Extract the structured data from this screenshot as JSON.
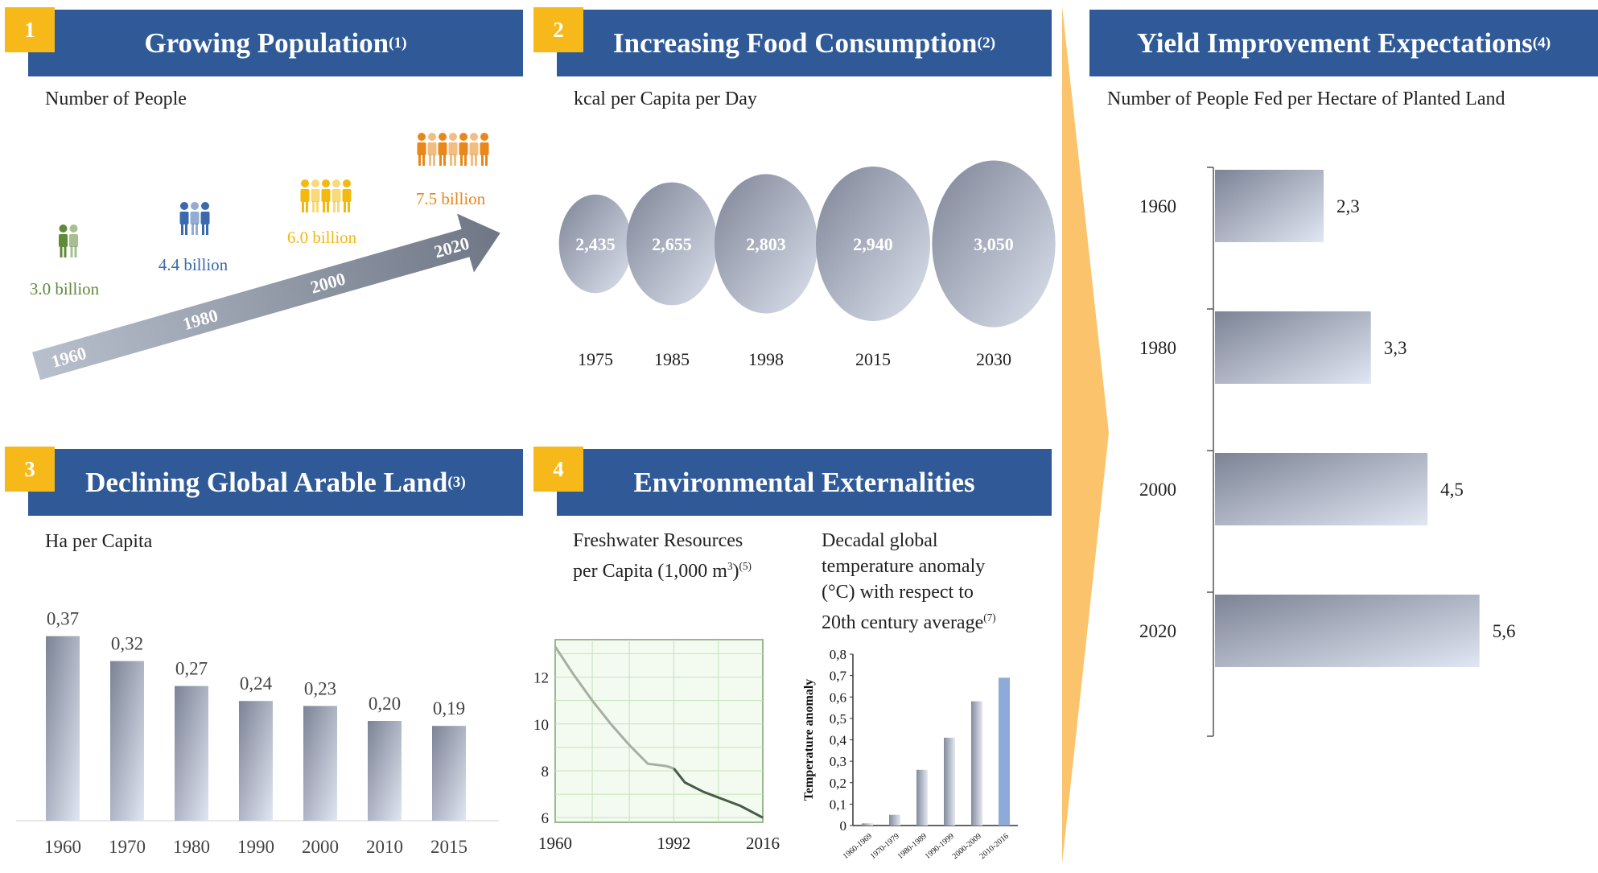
{
  "panel1": {
    "badge": "1",
    "title": "Growing Population",
    "title_sup": "(1)",
    "subtitle": "Number of People",
    "groups": [
      {
        "label": "3.0 billion",
        "color": "#5e8a3a",
        "icon": "people-group-icon"
      },
      {
        "label": "4.4 billion",
        "color": "#3a69ad",
        "icon": "people-group-icon"
      },
      {
        "label": "6.0 billion",
        "color": "#f2b90f",
        "icon": "people-group-icon"
      },
      {
        "label": "7.5 billion",
        "color": "#e8871a",
        "icon": "people-group-icon"
      }
    ],
    "arrow_years": [
      "1960",
      "1980",
      "2000",
      "2020"
    ]
  },
  "panel2": {
    "badge": "2",
    "title": "Increasing Food Consumption",
    "title_sup": "(2)",
    "subtitle": "kcal per Capita per Day",
    "chart_data": {
      "type": "bubble",
      "categories": [
        "1975",
        "1985",
        "1998",
        "2015",
        "2030"
      ],
      "values": [
        2435,
        2655,
        2803,
        2940,
        3050
      ],
      "value_labels": [
        "2,435",
        "2,655",
        "2,803",
        "2,940",
        "3,050"
      ]
    }
  },
  "panel3": {
    "badge": "3",
    "title": "Declining Global Arable Land",
    "title_sup": "(3)",
    "subtitle": "Ha per Capita",
    "chart_data": {
      "type": "bar",
      "categories": [
        "1960",
        "1970",
        "1980",
        "1990",
        "2000",
        "2010",
        "2015"
      ],
      "values": [
        0.37,
        0.32,
        0.27,
        0.24,
        0.23,
        0.2,
        0.19
      ],
      "value_labels": [
        "0,37",
        "0,32",
        "0,27",
        "0,24",
        "0,23",
        "0,20",
        "0,19"
      ]
    }
  },
  "panel4": {
    "badge": "4",
    "title": "Environmental Externalities",
    "freshwater": {
      "caption_line1": "Freshwater Resources",
      "caption_line2": "per Capita (1,000 m",
      "caption_sup3": "3",
      "caption_close": ")",
      "caption_sup": "(5)",
      "chart_data": {
        "type": "line",
        "x": [
          1960,
          1965,
          1970,
          1975,
          1980,
          1985,
          1990,
          1992,
          1995,
          2000,
          2005,
          2010,
          2016
        ],
        "y": [
          13.3,
          12.1,
          11.0,
          10.0,
          9.1,
          8.3,
          8.2,
          8.1,
          7.5,
          7.1,
          6.8,
          6.5,
          6.0
        ],
        "xticks": [
          "1960",
          "1992",
          "2016"
        ],
        "yticks": [
          "12",
          "10",
          "8",
          "6"
        ],
        "ylim": [
          5.8,
          13.6
        ],
        "grid": true
      }
    },
    "temperature": {
      "caption_lines": [
        "Decadal global",
        "temperature anomaly",
        "(°C) with respect to",
        "20th century average"
      ],
      "caption_sup": "(7)",
      "chart_data": {
        "type": "bar",
        "ylabel": "Temperature anomaly",
        "categories": [
          "1960-1969",
          "1970-1979",
          "1980-1989",
          "1990-1999",
          "2000-2009",
          "2010-2016"
        ],
        "values": [
          0.01,
          0.05,
          0.26,
          0.41,
          0.58,
          0.69
        ],
        "yticks": [
          "0,8",
          "0,7",
          "0,6",
          "0,5",
          "0,4",
          "0,3",
          "0,2",
          "0,1",
          "0"
        ],
        "ylim": [
          0,
          0.8
        ],
        "highlight_color": "#8eaad8"
      }
    }
  },
  "panel5": {
    "title": "Yield Improvement Expectations",
    "title_sup": "(4)",
    "subtitle": "Number of People Fed per Hectare of Planted Land",
    "chart_data": {
      "type": "bar",
      "orientation": "horizontal",
      "categories": [
        "1960",
        "1980",
        "2000",
        "2020"
      ],
      "values": [
        2.3,
        3.3,
        4.5,
        5.6
      ],
      "value_labels": [
        "2,3",
        "3,3",
        "4,5",
        "5,6"
      ]
    }
  },
  "colors": {
    "banner": "#2f5a97",
    "badge": "#f7b81a",
    "connector": "#fbc36c"
  }
}
